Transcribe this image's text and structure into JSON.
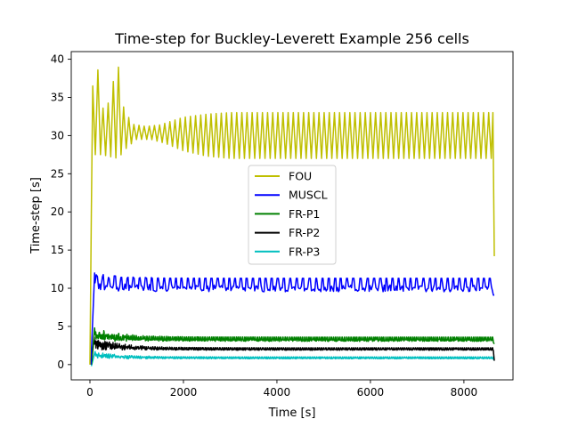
{
  "chart_data": {
    "type": "line",
    "title": "Time-step for Buckley-Leverett Example 256 cells",
    "xlabel": "Time [s]",
    "ylabel": "Time-step [s]",
    "xlim": [
      -400,
      9050
    ],
    "ylim": [
      -2,
      41
    ],
    "xticks": [
      0,
      2000,
      4000,
      6000,
      8000
    ],
    "xtick_labels": [
      "0",
      "2000",
      "4000",
      "6000",
      "8000"
    ],
    "yticks": [
      0,
      5,
      10,
      15,
      20,
      25,
      30,
      35,
      40
    ],
    "ytick_labels": [
      "0",
      "5",
      "10",
      "15",
      "20",
      "25",
      "30",
      "35",
      "40"
    ],
    "grid": false,
    "legend_position": "center",
    "series": [
      {
        "name": "FOU",
        "color": "#bfbf00",
        "shape": "oscillating",
        "start": [
          0,
          0
        ],
        "peaks": [
          [
            60,
            36.5
          ],
          [
            110,
            36.8
          ],
          [
            160,
            39.3
          ],
          [
            250,
            33
          ],
          [
            350,
            35
          ],
          [
            430,
            33.5
          ],
          [
            480,
            36.5
          ],
          [
            560,
            38.8
          ],
          [
            620,
            39.0
          ],
          [
            700,
            34
          ],
          [
            900,
            31.5
          ],
          [
            1200,
            31.2
          ],
          [
            1500,
            31.4
          ],
          [
            2000,
            32.4
          ],
          [
            2500,
            32.8
          ],
          [
            3000,
            33.0
          ],
          [
            8600,
            33.0
          ]
        ],
        "troughs": [
          [
            250,
            27.5
          ],
          [
            600,
            27.0
          ],
          [
            800,
            28.5
          ],
          [
            1000,
            29.5
          ],
          [
            1300,
            29.5
          ],
          [
            1600,
            29.0
          ],
          [
            2000,
            28.0
          ],
          [
            2500,
            27.3
          ],
          [
            3000,
            27.0
          ],
          [
            8600,
            27.0
          ]
        ],
        "end": [
          8650,
          14.2
        ],
        "cycle_length": 110
      },
      {
        "name": "MUSCL",
        "color": "#0000ff",
        "shape": "noisy",
        "start": [
          20,
          0
        ],
        "peak": [
          100,
          12
        ],
        "base": 9.1,
        "high": 11.3,
        "cycle_length": 130,
        "end": [
          8650,
          9.1
        ]
      },
      {
        "name": "FR-P1",
        "color": "#008000",
        "shape": "noisy",
        "start": [
          30,
          0
        ],
        "peak": [
          100,
          4.8
        ],
        "base": 2.9,
        "high": 3.6,
        "cycle_length": 45,
        "end": [
          8650,
          2.7
        ]
      },
      {
        "name": "FR-P2",
        "color": "#000000",
        "shape": "noisy",
        "start": [
          30,
          0
        ],
        "peak": [
          90,
          3.6
        ],
        "base": 1.8,
        "high": 2.2,
        "cycle_length": 45,
        "end": [
          8650,
          0.5
        ]
      },
      {
        "name": "FR-P3",
        "color": "#00bfbf",
        "shape": "noisy",
        "start": [
          30,
          -0.2
        ],
        "peak": [
          110,
          1.7
        ],
        "base": 0.7,
        "high": 1.0,
        "cycle_length": 45,
        "end": [
          8650,
          0.6
        ]
      }
    ]
  }
}
